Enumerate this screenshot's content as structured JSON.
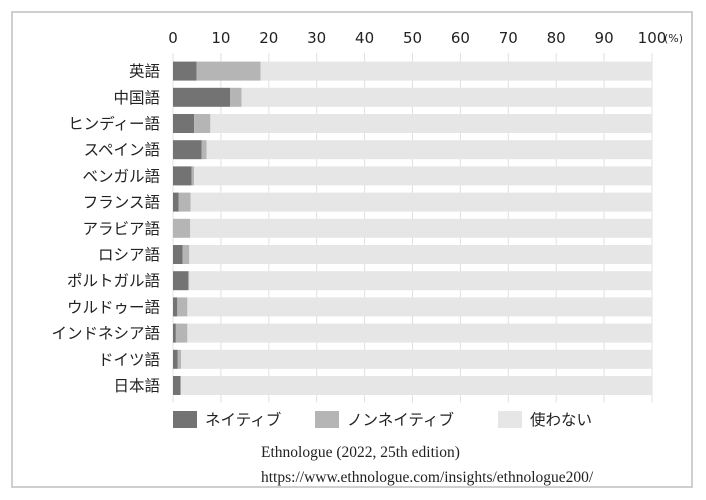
{
  "chart_data": {
    "type": "bar",
    "stacked": true,
    "orientation": "horizontal",
    "categories": [
      "英語",
      "中国語",
      "ヒンディー語",
      "スペイン語",
      "ベンガル語",
      "フランス語",
      "アラビア語",
      "ロシア語",
      "ポルトガル語",
      "ウルドゥー語",
      "インドネシア語",
      "ドイツ語",
      "日本語"
    ],
    "series": [
      {
        "name": "ネイティブ",
        "color": "#737373",
        "values": [
          4.9,
          11.9,
          4.4,
          6.0,
          3.9,
          1.2,
          0,
          2.0,
          3.2,
          0.9,
          0.6,
          1.0,
          1.6
        ]
      },
      {
        "name": "ノンネイティブ",
        "color": "#b5b5b5",
        "values": [
          13.4,
          2.4,
          3.4,
          1.0,
          0.5,
          2.5,
          3.6,
          1.4,
          0.2,
          2.1,
          2.4,
          0.7,
          0
        ]
      },
      {
        "name": "使わない",
        "color": "#e6e6e6",
        "values": [
          81.7,
          85.7,
          92.2,
          93.0,
          95.6,
          96.3,
          96.4,
          96.6,
          96.6,
          97.0,
          97.0,
          98.3,
          98.4
        ]
      }
    ],
    "xticks": [
      "0",
      "10",
      "20",
      "30",
      "40",
      "50",
      "60",
      "70",
      "80",
      "90",
      "100"
    ],
    "xlim": [
      0,
      100
    ],
    "unit": "(%)",
    "grid": true,
    "legend_position": "bottom"
  },
  "source": {
    "line1": "Ethnologue (2022, 25th edition)",
    "line2": "https://www.ethnologue.com/insights/ethnologue200/"
  }
}
